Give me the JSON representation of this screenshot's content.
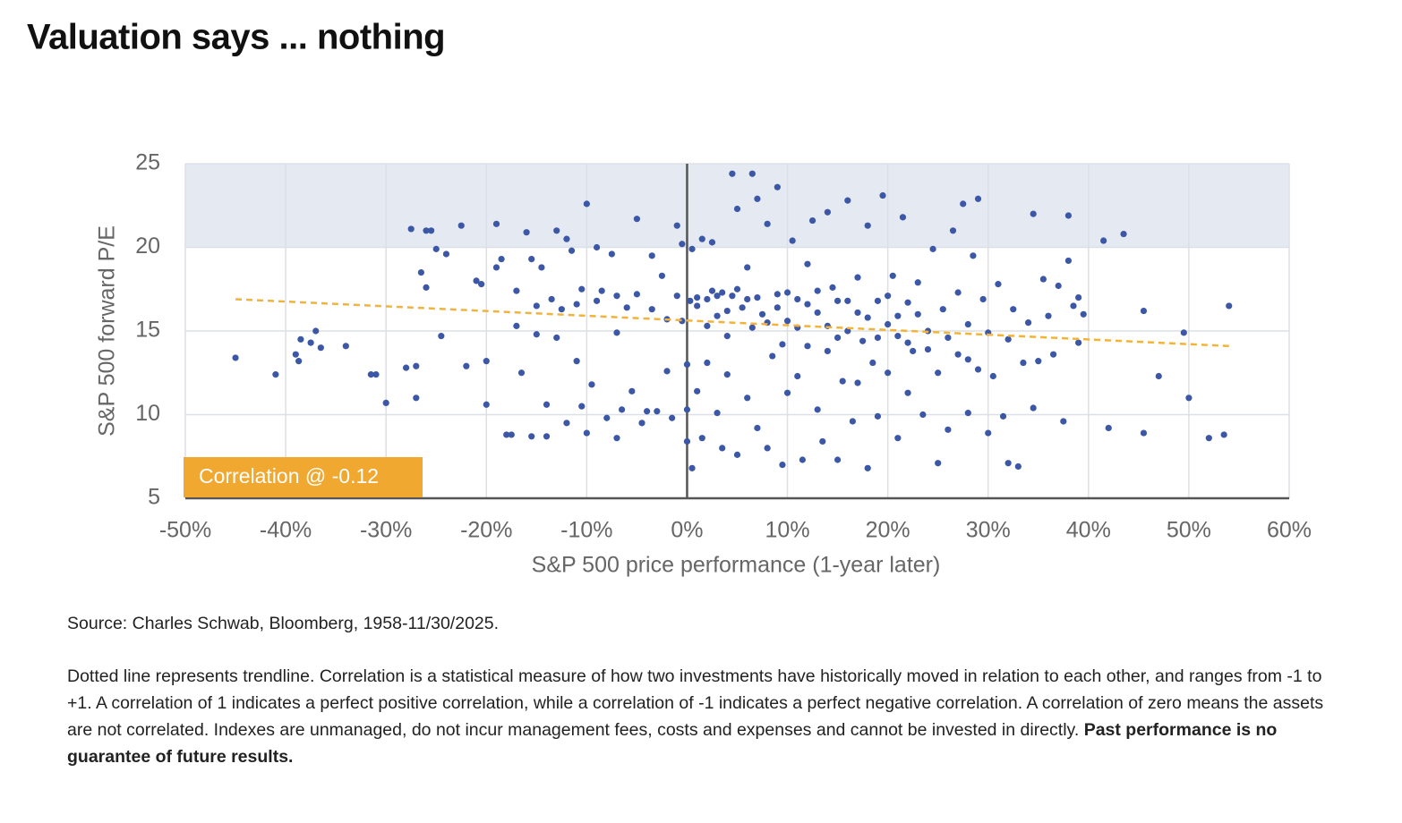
{
  "chart_data": {
    "type": "scatter",
    "title": "Valuation says ... nothing",
    "x_label": "S&P 500 price performance (1-year later)",
    "y_label": "S&P 500 forward P/E",
    "annotation": "Correlation @ -0.12",
    "xlim": [
      -50,
      60
    ],
    "ylim": [
      5,
      25
    ],
    "xticks": [
      {
        "value": -50,
        "label": "-50%"
      },
      {
        "value": -40,
        "label": "-40%"
      },
      {
        "value": -30,
        "label": "-30%"
      },
      {
        "value": -20,
        "label": "-20%"
      },
      {
        "value": -10,
        "label": "-10%"
      },
      {
        "value": 0,
        "label": "0%"
      },
      {
        "value": 10,
        "label": "10%"
      },
      {
        "value": 20,
        "label": "20%"
      },
      {
        "value": 30,
        "label": "30%"
      },
      {
        "value": 40,
        "label": "40%"
      },
      {
        "value": 50,
        "label": "50%"
      },
      {
        "value": 60,
        "label": "60%"
      }
    ],
    "yticks": [
      5,
      10,
      15,
      20,
      25
    ],
    "grid": true,
    "shaded_ylim": [
      20,
      25
    ],
    "shade_color": "#e4e9f2",
    "trendline": {
      "color": "#f2b33d",
      "x": [
        -45,
        54
      ],
      "values": [
        16.9,
        14.1
      ]
    },
    "annotation_color": "#f0a830",
    "series": [
      {
        "color": "#3b57a6",
        "x": [
          -45,
          -41,
          -39,
          -38.5,
          -37.5,
          -37,
          -38.7,
          -36.5,
          -34,
          -31.5,
          -31,
          -30,
          -28,
          -27,
          -27,
          -27.5,
          -26,
          -25.5,
          -26.5,
          -26,
          -25,
          -24,
          -24.5,
          -22.5,
          -22,
          -21,
          -20.5,
          -20,
          -20,
          -19,
          -19,
          -18.5,
          -18,
          -17.5,
          -17,
          -17,
          -16.5,
          -16,
          -15.5,
          -15,
          -15,
          -15.5,
          -14.5,
          -14,
          -14,
          -13.5,
          -13,
          -13,
          -12.5,
          -12,
          -12,
          -11.5,
          -11,
          -11,
          -10.5,
          -10.5,
          -10,
          -10,
          -9.5,
          -9,
          -9,
          -8.5,
          -8,
          -7.5,
          -7,
          -7,
          -7,
          -6.5,
          -6,
          -5.5,
          -5,
          -5,
          -4.5,
          -4,
          -3.5,
          -3.5,
          -3,
          -2.5,
          -2,
          -2,
          -1.5,
          -1,
          -1,
          -0.5,
          -0.5,
          0,
          0,
          0,
          0.3,
          0.5,
          0.5,
          1,
          1,
          1.5,
          1.5,
          2,
          2,
          2.5,
          2.5,
          3,
          3,
          3.5,
          3.5,
          4,
          4,
          4.5,
          4.5,
          5,
          5,
          5.5,
          6,
          6,
          6.5,
          6.5,
          7,
          7,
          7.5,
          8,
          8,
          8.5,
          9,
          9,
          9.5,
          9.5,
          10,
          10,
          10.5,
          11,
          11,
          11.5,
          12,
          12,
          12.5,
          13,
          13,
          13.5,
          14,
          14,
          14.5,
          15,
          15,
          15.5,
          16,
          16,
          16.5,
          17,
          17,
          17.5,
          18,
          18,
          18.5,
          19,
          19,
          19.5,
          20,
          20,
          20.5,
          21,
          21,
          21.5,
          22,
          22,
          22.5,
          23,
          23.5,
          24,
          24.5,
          25,
          25,
          25.5,
          26,
          26.5,
          27,
          27,
          27.5,
          28,
          28,
          28.5,
          29,
          29,
          29.5,
          30,
          30,
          30.5,
          31,
          31.5,
          32,
          32,
          32.5,
          33,
          33.5,
          34,
          34.5,
          34.5,
          35,
          35.5,
          36,
          36.5,
          37,
          37.5,
          38,
          38,
          38.5,
          39,
          39,
          39.5,
          41.5,
          42,
          43.5,
          45.5,
          45.5,
          47,
          49.5,
          50,
          52,
          53.5,
          54,
          1,
          2,
          3,
          4,
          5,
          6,
          7,
          8,
          9,
          10,
          11,
          12,
          13,
          14,
          15,
          16,
          17,
          18,
          19,
          20,
          21,
          22,
          23,
          24,
          26,
          28
        ],
        "values": [
          13.4,
          12.4,
          13.6,
          14.5,
          14.3,
          15,
          13.2,
          14,
          14.1,
          12.4,
          12.4,
          10.7,
          12.8,
          12.9,
          11,
          21.1,
          21,
          21,
          18.5,
          17.6,
          19.9,
          19.6,
          14.7,
          21.3,
          12.9,
          18,
          17.8,
          13.2,
          10.6,
          21.4,
          18.8,
          19.3,
          8.8,
          8.8,
          17.4,
          15.3,
          12.5,
          20.9,
          19.3,
          16.5,
          14.8,
          8.7,
          18.8,
          10.6,
          8.7,
          16.9,
          14.6,
          21,
          16.3,
          20.5,
          9.5,
          19.8,
          16.6,
          13.2,
          17.5,
          10.5,
          22.6,
          8.9,
          11.8,
          20,
          16.8,
          17.4,
          9.8,
          19.6,
          17.1,
          14.9,
          8.6,
          10.3,
          16.4,
          11.4,
          17.2,
          21.7,
          9.5,
          10.2,
          19.5,
          16.3,
          10.2,
          18.3,
          15.7,
          12.6,
          9.8,
          21.3,
          17.1,
          15.6,
          20.2,
          8.4,
          10.3,
          13,
          16.8,
          6.8,
          19.9,
          11.4,
          17,
          20.5,
          8.6,
          15.3,
          13.1,
          17.4,
          20.3,
          15.9,
          10.1,
          8,
          17.3,
          14.7,
          12.4,
          24.4,
          17.1,
          7.6,
          22.3,
          16.4,
          11,
          18.8,
          24.4,
          15.2,
          22.9,
          9.2,
          16,
          8,
          21.4,
          13.5,
          23.6,
          17.2,
          7,
          14.2,
          15.6,
          11.3,
          20.4,
          12.3,
          16.9,
          7.3,
          19,
          14.1,
          21.6,
          10.3,
          16.1,
          8.4,
          13.8,
          22.1,
          17.6,
          7.3,
          14.6,
          12,
          22.8,
          16.8,
          9.6,
          11.9,
          18.2,
          14.4,
          6.8,
          21.3,
          13.1,
          16.8,
          9.9,
          23.1,
          15.4,
          12.5,
          18.3,
          8.6,
          14.7,
          21.8,
          16.7,
          11.3,
          13.8,
          17.9,
          10,
          15,
          19.9,
          7.1,
          12.5,
          16.3,
          9.1,
          21,
          13.6,
          17.3,
          22.6,
          10.1,
          15.4,
          19.5,
          12.7,
          22.9,
          16.9,
          14.9,
          8.9,
          12.3,
          17.8,
          9.9,
          14.5,
          7.1,
          16.3,
          6.9,
          13.1,
          15.5,
          22,
          10.4,
          13.2,
          18.1,
          15.9,
          13.6,
          17.7,
          9.6,
          21.9,
          19.2,
          16.5,
          14.3,
          17,
          16,
          20.4,
          9.2,
          20.8,
          8.9,
          16.2,
          12.3,
          14.9,
          11,
          8.6,
          8.8,
          16.5,
          16.5,
          16.9,
          17.1,
          16.2,
          17.5,
          16.9,
          17,
          15.5,
          16.4,
          17.3,
          15.2,
          16.6,
          17.4,
          15.3,
          16.8,
          15,
          16.1,
          15.8,
          14.6,
          17.1,
          15.9,
          14.3,
          16,
          13.9,
          14.6,
          13.3
        ]
      }
    ]
  },
  "footer": {
    "source": "Source: Charles Schwab, Bloomberg, 1958-11/30/2025.",
    "note": "Dotted line represents trendline. Correlation is a statistical measure of how two investments have historically moved in relation to each other, and ranges from -1 to +1. A correlation of 1 indicates a perfect positive correlation, while a correlation of -1 indicates a perfect negative correlation. A correlation of zero means the assets are not correlated. Indexes are unmanaged, do not incur management fees, costs and expenses and cannot be invested in directly.",
    "note_bold": "Past performance is no guarantee of future results."
  }
}
